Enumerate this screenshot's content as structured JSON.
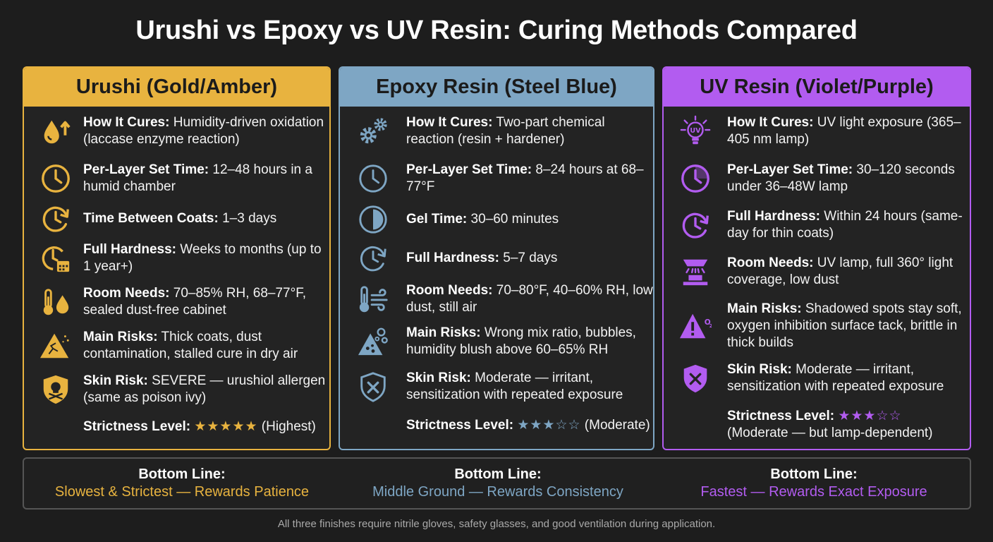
{
  "title": "Urushi vs Epoxy vs UV Resin: Curing Methods Compared",
  "colors": {
    "gold": "#e8b33f",
    "blue": "#7ea6c4",
    "violet": "#b25cf0",
    "background": "#1d1d1d"
  },
  "panels": [
    {
      "name": "Urushi (Gold/Amber)",
      "rows": [
        {
          "icon": "water-drop-arrow-up-icon",
          "label": "How It Cures:",
          "text": " Humidity-driven oxidation (laccase enzyme reaction)"
        },
        {
          "icon": "clock-icon",
          "label": "Per-Layer Set Time:",
          "text": " 12–48 hours in a humid chamber"
        },
        {
          "icon": "clock-refresh-icon",
          "label": "Time Between Coats:",
          "text": " 1–3 days"
        },
        {
          "icon": "clock-calendar-icon",
          "label": "Full Hardness:",
          "text": " Weeks to months (up to 1 year+)"
        },
        {
          "icon": "thermometer-drop-icon",
          "label": "Room Needs:",
          "text": " 70–85% RH, 68–77°F, sealed dust-free cabinet"
        },
        {
          "icon": "warning-crack-icon",
          "label": "Main Risks:",
          "text": " Thick coats, dust contamination, stalled cure in dry air"
        },
        {
          "icon": "skull-shield-icon",
          "label": "Skin Risk:",
          "text": " SEVERE — urushiol allergen (same as poison ivy)"
        }
      ],
      "strictness_label": "Strictness Level:",
      "strictness_stars": "★★★★★",
      "strictness_value": 5,
      "strictness_note": " (Highest)"
    },
    {
      "name": "Epoxy Resin (Steel Blue)",
      "rows": [
        {
          "icon": "gears-icon",
          "label": "How It Cures:",
          "text": " Two-part chemical reaction (resin + hardener)"
        },
        {
          "icon": "clock-icon",
          "label": "Per-Layer Set Time:",
          "text": " 8–24 hours at 68–77°F"
        },
        {
          "icon": "half-circle-icon",
          "label": "Gel Time:",
          "text": " 30–60 minutes"
        },
        {
          "icon": "clock-refresh-icon",
          "label": "Full Hardness:",
          "text": " 5–7 days"
        },
        {
          "icon": "thermometer-wind-icon",
          "label": "Room Needs:",
          "text": " 70–80°F, 40–60% RH, low dust, still air"
        },
        {
          "icon": "warning-bubbles-icon",
          "label": "Main Risks:",
          "text": " Wrong mix ratio, bubbles, humidity blush above 60–65% RH"
        },
        {
          "icon": "shield-x-icon",
          "label": "Skin Risk:",
          "text": " Moderate — irritant, sensitization with repeated exposure"
        }
      ],
      "strictness_label": "Strictness Level:",
      "strictness_stars": "★★★☆☆",
      "strictness_value": 3,
      "strictness_note": " (Moderate)"
    },
    {
      "name": "UV Resin (Violet/Purple)",
      "rows": [
        {
          "icon": "uv-bulb-icon",
          "label": "How It Cures:",
          "text": " UV light exposure (365–405 nm lamp)"
        },
        {
          "icon": "clock-icon",
          "label": "Per-Layer Set Time:",
          "text": " 30–120 seconds under 36–48W lamp"
        },
        {
          "icon": "clock-refresh-icon",
          "label": "Full Hardness:",
          "text": " Within 24 hours (same-day for thin coats)"
        },
        {
          "icon": "uv-lamp-icon",
          "label": "Room Needs:",
          "text": " UV lamp, full 360° light coverage, low dust"
        },
        {
          "icon": "warning-oxygen-icon",
          "label": "Main Risks:",
          "text": " Shadowed spots stay soft, oxygen inhibition surface tack, brittle in thick builds"
        },
        {
          "icon": "shield-x-icon",
          "label": "Skin Risk:",
          "text": " Moderate — irritant, sensitization with repeated exposure"
        }
      ],
      "strictness_label": "Strictness Level:",
      "strictness_stars": "★★★☆☆",
      "strictness_value": 3,
      "strictness_note": "(Moderate — but lamp-dependent)"
    }
  ],
  "bottom": [
    {
      "label": "Bottom Line:",
      "value": "Slowest & Strictest — Rewards Patience"
    },
    {
      "label": "Bottom Line:",
      "value": "Middle Ground — Rewards Consistency"
    },
    {
      "label": "Bottom Line:",
      "value": "Fastest — Rewards Exact Exposure"
    }
  ],
  "footer": "All three finishes require nitrile gloves, safety glasses, and good ventilation during application."
}
